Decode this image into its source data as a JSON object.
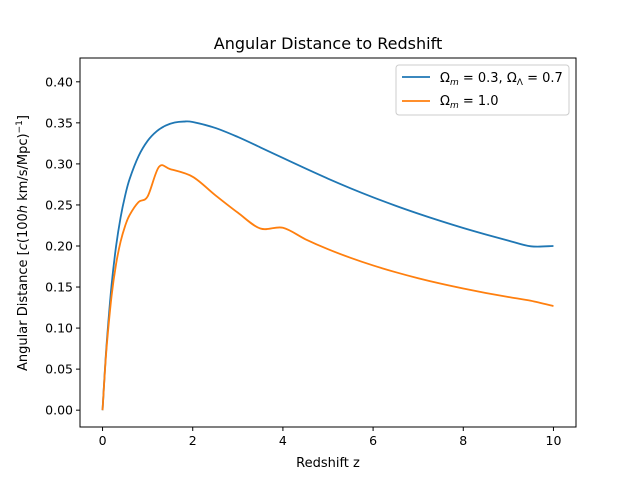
{
  "chart_data": {
    "type": "line",
    "title": "Angular Distance to Redshift",
    "xlabel": "Redshift z",
    "ylabel": "Angular Distance [c(100h km/s/Mpc)^-1]",
    "ylabel_parts": {
      "prefix": "Angular Distance [",
      "c": "c",
      "open": "(100",
      "h": "h",
      "units": " km/s/Mpc)",
      "exp": "−1",
      "close": "]"
    },
    "xlim": [
      -0.5,
      10.5
    ],
    "ylim": [
      -0.0205,
      0.429
    ],
    "xticks": [
      0,
      2,
      4,
      6,
      8,
      10
    ],
    "xtick_labels": [
      "0",
      "2",
      "4",
      "6",
      "8",
      "10"
    ],
    "yticks": [
      0.0,
      0.05,
      0.1,
      0.15,
      0.2,
      0.25,
      0.3,
      0.35,
      0.4
    ],
    "ytick_labels": [
      "0.00",
      "0.05",
      "0.10",
      "0.15",
      "0.20",
      "0.25",
      "0.30",
      "0.35",
      "0.40"
    ],
    "grid": false,
    "legend_position": "upper right",
    "series": [
      {
        "name": "Ωm = 0.3, ΩΛ = 0.7",
        "name_parts": [
          "Ω",
          "m",
          " = 0.3, ",
          "Ω",
          "Λ",
          " = 0.7"
        ],
        "color": "#1f77b4",
        "x": [
          0,
          0.05,
          0.1,
          0.2,
          0.3,
          0.4,
          0.5,
          0.6,
          0.8,
          1.0,
          1.2,
          1.4,
          1.6,
          1.8,
          2.0,
          2.5,
          3.0,
          3.5,
          4.0,
          4.5,
          5.0,
          5.5,
          6.0,
          6.5,
          7.0,
          7.5,
          8.0,
          8.5,
          9.0,
          9.5,
          10.0
        ],
        "y": [
          0.0,
          0.0469,
          0.0874,
          0.1522,
          0.1997,
          0.2347,
          0.2611,
          0.2815,
          0.3096,
          0.3281,
          0.3397,
          0.3467,
          0.3504,
          0.3516,
          0.351,
          0.3438,
          0.3328,
          0.3201,
          0.3072,
          0.2944,
          0.282,
          0.2703,
          0.2593,
          0.249,
          0.2394,
          0.2304,
          0.2219,
          0.214,
          0.2066,
          0.1996,
          0.2
        ]
      },
      {
        "name": "Ωm = 1.0",
        "name_parts": [
          "Ω",
          "m",
          " = 1.0"
        ],
        "color": "#ff7f0e",
        "x": [
          0,
          0.05,
          0.1,
          0.2,
          0.3,
          0.4,
          0.5,
          0.6,
          0.8,
          1.0,
          1.25,
          1.5,
          2.0,
          2.5,
          3.0,
          3.5,
          4.0,
          4.5,
          5.0,
          5.5,
          6.0,
          6.5,
          7.0,
          7.5,
          8.0,
          8.5,
          9.0,
          9.5,
          10.0
        ],
        "y": [
          0.0,
          0.0455,
          0.0828,
          0.1391,
          0.178,
          0.2052,
          0.2243,
          0.2377,
          0.2536,
          0.2604,
          0.2963,
          0.2936,
          0.2843,
          0.2619,
          0.2406,
          0.2213,
          0.2222,
          0.2082,
          0.1961,
          0.1856,
          0.1763,
          0.1681,
          0.1607,
          0.1541,
          0.1482,
          0.1428,
          0.1379,
          0.1333,
          0.1268
        ]
      }
    ]
  }
}
